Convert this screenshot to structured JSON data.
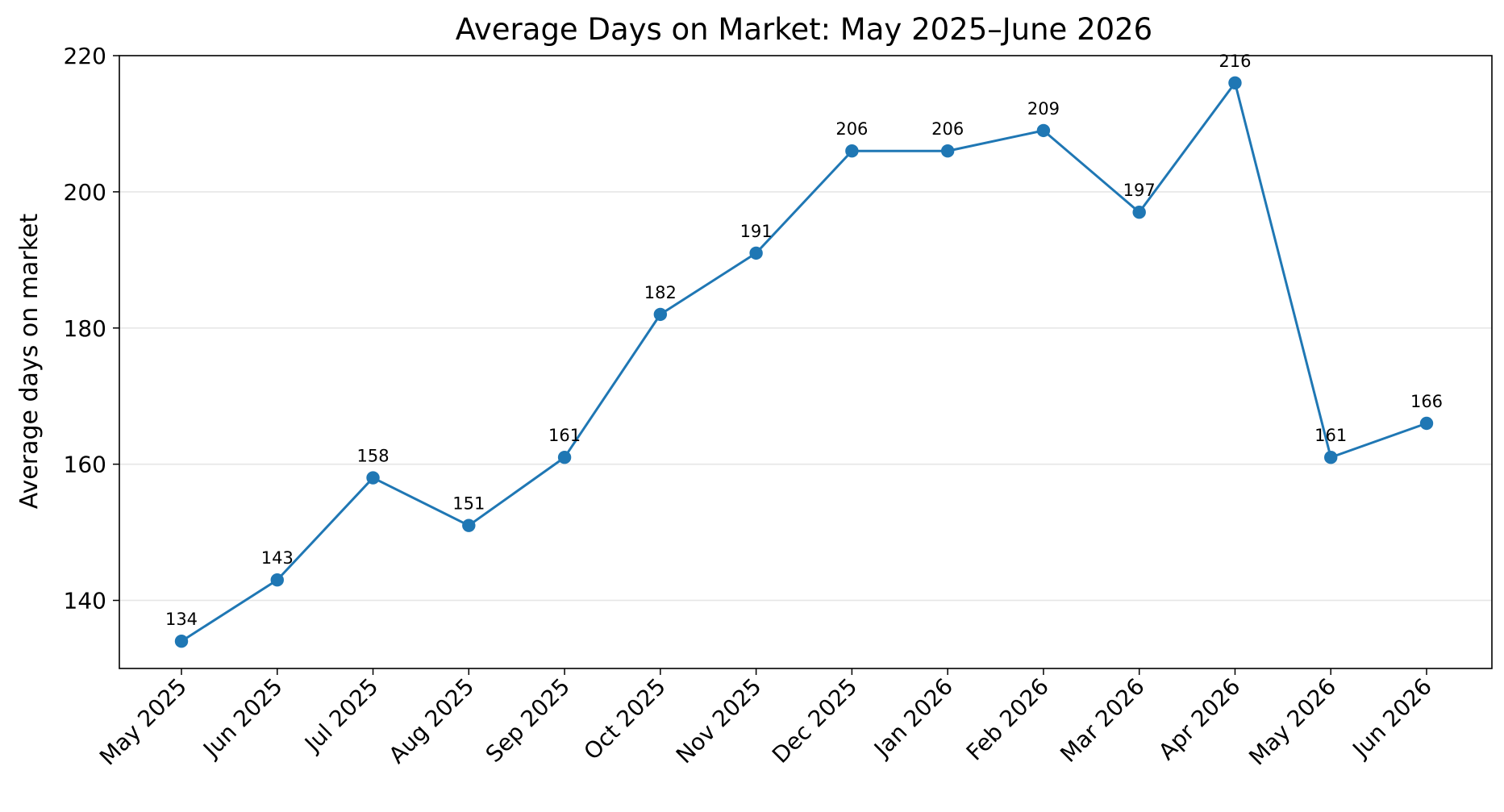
{
  "chart_data": {
    "type": "line",
    "title": "Average Days on Market: May 2025–June 2026",
    "xlabel": "",
    "ylabel": "Average days on market",
    "categories": [
      "May 2025",
      "Jun 2025",
      "Jul 2025",
      "Aug 2025",
      "Sep 2025",
      "Oct 2025",
      "Nov 2025",
      "Dec 2025",
      "Jan 2026",
      "Feb 2026",
      "Mar 2026",
      "Apr 2026",
      "May 2026",
      "Jun 2026"
    ],
    "series": [
      {
        "values": [
          134,
          143,
          158,
          151,
          161,
          182,
          191,
          206,
          206,
          209,
          197,
          216,
          161,
          166
        ],
        "color": "#1f77b4"
      }
    ],
    "data_labels": [
      "134",
      "143",
      "158",
      "151",
      "161",
      "182",
      "191",
      "206",
      "206",
      "209",
      "197",
      "216",
      "161",
      "166"
    ],
    "y_ticks": [
      140,
      160,
      180,
      200,
      220
    ],
    "y_tick_labels": [
      "140",
      "160",
      "180",
      "200",
      "220"
    ],
    "ylim": [
      130,
      220
    ],
    "grid": "horizontal",
    "legend": "none"
  }
}
